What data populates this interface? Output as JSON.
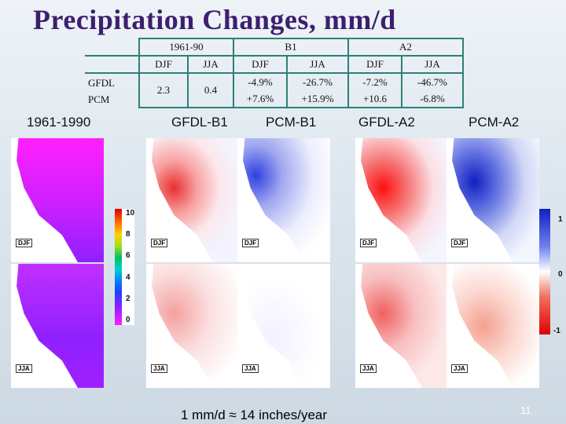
{
  "title": "Precipitation Changes, mm/d",
  "table": {
    "group_headers": [
      "1961-90",
      "B1",
      "A2"
    ],
    "season_headers": [
      "DJF",
      "JJA",
      "DJF",
      "JJA",
      "DJF",
      "JJA"
    ],
    "row_labels": [
      "GFDL",
      "PCM"
    ],
    "baseline": {
      "djf": "2.3",
      "jja": "0.4"
    },
    "b1": {
      "djf_gfdl": "-4.9%",
      "djf_pcm": "+7.6%",
      "jja_gfdl": "-26.7%",
      "jja_pcm": "+15.9%"
    },
    "a2": {
      "djf_gfdl": "-7.2%",
      "djf_pcm": "+10.6",
      "jja_gfdl": "-46.7%",
      "jja_pcm": "-6.8%"
    }
  },
  "panel_titles": [
    "1961-1990",
    "GFDL-B1",
    "PCM-B1",
    "GFDL-A2",
    "PCM-A2"
  ],
  "season_tags": {
    "djf": "DJF",
    "jja": "JJA"
  },
  "colorbar_left": {
    "ticks": [
      "10",
      "8",
      "6",
      "4",
      "2",
      "0"
    ],
    "range": [
      0,
      10
    ]
  },
  "colorbar_right": {
    "ticks": [
      "1",
      "0",
      "-1"
    ],
    "range": [
      -1,
      1
    ]
  },
  "footer": "1 mm/d ≈ 14 inches/year",
  "slide_number": "11",
  "chart_data": [
    {
      "type": "heatmap",
      "title": "1961-1990",
      "season": "DJF",
      "units": "mm/d",
      "range": [
        0,
        10
      ]
    },
    {
      "type": "heatmap",
      "title": "1961-1990",
      "season": "JJA",
      "units": "mm/d",
      "range": [
        0,
        10
      ]
    },
    {
      "type": "heatmap",
      "title": "GFDL-B1",
      "season": "DJF",
      "range": [
        -1,
        1
      ]
    },
    {
      "type": "heatmap",
      "title": "GFDL-B1",
      "season": "JJA",
      "range": [
        -1,
        1
      ]
    },
    {
      "type": "heatmap",
      "title": "PCM-B1",
      "season": "DJF",
      "range": [
        -1,
        1
      ]
    },
    {
      "type": "heatmap",
      "title": "PCM-B1",
      "season": "JJA",
      "range": [
        -1,
        1
      ]
    },
    {
      "type": "heatmap",
      "title": "GFDL-A2",
      "season": "DJF",
      "range": [
        -1,
        1
      ]
    },
    {
      "type": "heatmap",
      "title": "GFDL-A2",
      "season": "JJA",
      "range": [
        -1,
        1
      ]
    },
    {
      "type": "heatmap",
      "title": "PCM-A2",
      "season": "DJF",
      "range": [
        -1,
        1
      ]
    },
    {
      "type": "heatmap",
      "title": "PCM-A2",
      "season": "JJA",
      "range": [
        -1,
        1
      ]
    }
  ],
  "colors": {
    "title": "#3d1f70",
    "table_border": "#2e7f7a",
    "wet": "#1a30e0",
    "dry": "#e01010"
  }
}
